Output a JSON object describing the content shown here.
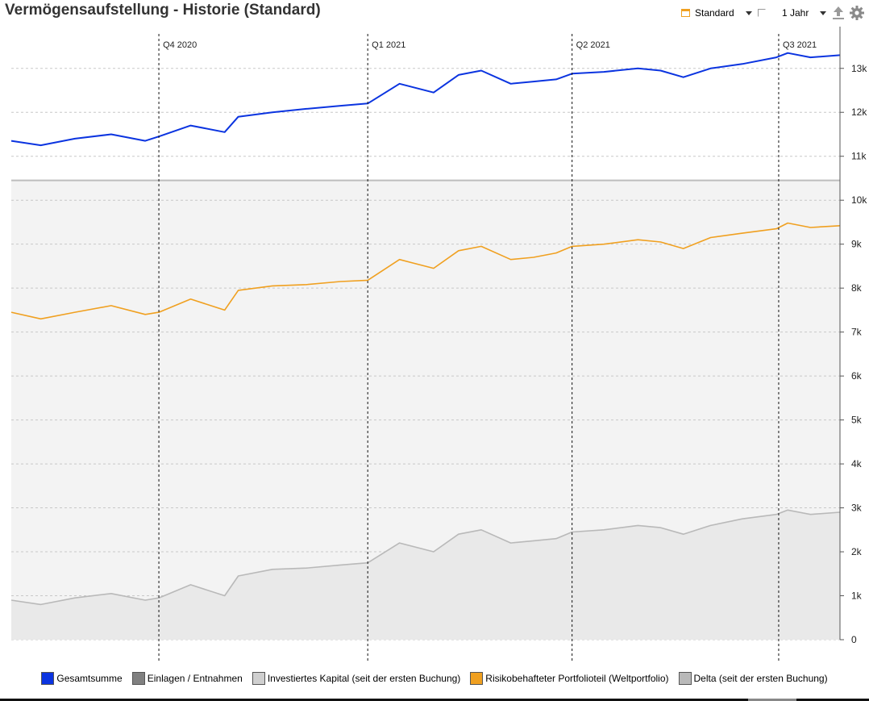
{
  "title": "Vermögensaufstellung - Historie (Standard)",
  "toolbar": {
    "view_label": "Standard",
    "period_label": "1 Jahr",
    "accent": "#f0a020"
  },
  "chart_data": {
    "type": "line",
    "x_start": "2020-07-28",
    "x_end": "2021-07-28",
    "quarter_markers": [
      {
        "label": "Q4 2020",
        "date": "2020-10-01"
      },
      {
        "label": "Q1 2021",
        "date": "2021-01-01"
      },
      {
        "label": "Q2 2021",
        "date": "2021-04-01"
      },
      {
        "label": "Q3 2021",
        "date": "2021-07-01"
      }
    ],
    "yticks": [
      0,
      1000,
      2000,
      3000,
      4000,
      5000,
      6000,
      7000,
      8000,
      9000,
      10000,
      11000,
      12000,
      13000
    ],
    "ytick_labels": [
      "0",
      "1k",
      "2k",
      "3k",
      "4k",
      "5k",
      "6k",
      "7k",
      "8k",
      "9k",
      "10k",
      "11k",
      "12k",
      "13k"
    ],
    "ylim": [
      0,
      13950
    ],
    "invested_capital_level": 10450,
    "grid": true,
    "legend_position": "bottom",
    "x": [
      "2020-07-28",
      "2020-08-10",
      "2020-08-25",
      "2020-09-10",
      "2020-09-25",
      "2020-10-01",
      "2020-10-15",
      "2020-10-30",
      "2020-11-05",
      "2020-11-20",
      "2020-12-05",
      "2020-12-20",
      "2021-01-01",
      "2021-01-15",
      "2021-01-30",
      "2021-02-10",
      "2021-02-20",
      "2021-03-05",
      "2021-03-15",
      "2021-03-25",
      "2021-04-01",
      "2021-04-15",
      "2021-04-30",
      "2021-05-10",
      "2021-05-20",
      "2021-06-01",
      "2021-06-15",
      "2021-06-30",
      "2021-07-05",
      "2021-07-15",
      "2021-07-28"
    ],
    "series": [
      {
        "name": "Gesamtsumme",
        "color": "#0b34e0",
        "values": [
          11350,
          11250,
          11400,
          11500,
          11350,
          11450,
          11700,
          11550,
          11900,
          12000,
          12080,
          12150,
          12200,
          12650,
          12450,
          12850,
          12950,
          12650,
          12700,
          12750,
          12880,
          12920,
          13000,
          12950,
          12800,
          13000,
          13100,
          13250,
          13350,
          13250,
          13300
        ]
      },
      {
        "name": "Risikobehafteter Portfolioteil (Weltportfolio)",
        "color": "#f0a020",
        "values": [
          7450,
          7300,
          7450,
          7600,
          7400,
          7450,
          7750,
          7500,
          7950,
          8050,
          8080,
          8150,
          8180,
          8650,
          8450,
          8850,
          8950,
          8650,
          8700,
          8800,
          8950,
          9000,
          9100,
          9050,
          8900,
          9150,
          9250,
          9350,
          9480,
          9380,
          9420
        ]
      },
      {
        "name": "Delta (seit der ersten Buchung)",
        "color": "#b9b9b9",
        "values": [
          900,
          800,
          950,
          1050,
          900,
          950,
          1250,
          1000,
          1450,
          1600,
          1630,
          1700,
          1750,
          2200,
          2000,
          2400,
          2500,
          2200,
          2250,
          2300,
          2450,
          2500,
          2600,
          2550,
          2400,
          2600,
          2750,
          2850,
          2950,
          2850,
          2900
        ]
      }
    ],
    "legend": [
      {
        "label": "Gesamtsumme",
        "color": "#0b34e0"
      },
      {
        "label": "Einlagen / Entnahmen",
        "color": "#808080"
      },
      {
        "label": "Investiertes Kapital (seit der ersten Buchung)",
        "color": "#cfcfcf"
      },
      {
        "label": "Risikobehafteter Portfolioteil (Weltportfolio)",
        "color": "#f0a020"
      },
      {
        "label": "Delta (seit der ersten Buchung)",
        "color": "#b9b9b9"
      }
    ]
  }
}
